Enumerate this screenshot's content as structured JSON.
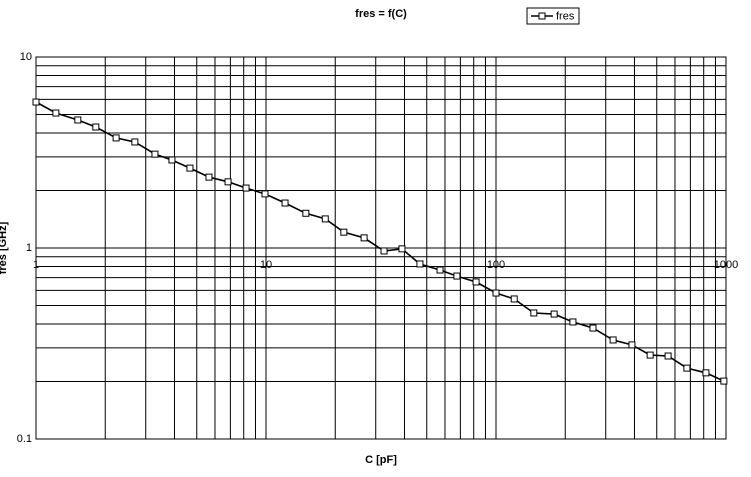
{
  "chart_data": {
    "type": "line",
    "title": "fres = f(C)",
    "x_label": "C [pF]",
    "y_label": "fres [GHz]",
    "x_log": true,
    "y_log": true,
    "grid": true,
    "legend": "top-right",
    "xlim": [
      1,
      1000
    ],
    "ylim": [
      0.1,
      10
    ],
    "xticks": [
      1,
      10,
      100,
      1000
    ],
    "yticks": [
      0.1,
      1,
      10
    ],
    "xgrid_minor": [
      2,
      3,
      4,
      5,
      6,
      7,
      8,
      9,
      20,
      30,
      40,
      50,
      60,
      70,
      80,
      90,
      200,
      300,
      400,
      500,
      600,
      700,
      800,
      900
    ],
    "ygrid_minor": [
      0.2,
      0.3,
      0.4,
      0.5,
      0.6,
      0.7,
      0.8,
      0.9,
      2,
      3,
      4,
      5,
      6,
      7,
      8,
      9
    ],
    "x": [
      1.0,
      1.22,
      1.52,
      1.82,
      2.23,
      2.69,
      3.29,
      3.9,
      4.67,
      5.65,
      6.84,
      8.19,
      9.9,
      12.1,
      14.9,
      18.1,
      21.8,
      26.7,
      32.6,
      39.0,
      46.7,
      57.1,
      67.6,
      81.9,
      100,
      120,
      146,
      179,
      216,
      264,
      323,
      390,
      468,
      560,
      676,
      818,
      979
    ],
    "series": [
      {
        "name": "fres",
        "color": "#000000",
        "values": [
          5.81,
          5.09,
          4.68,
          4.3,
          3.77,
          3.59,
          3.1,
          2.89,
          2.62,
          2.35,
          2.22,
          2.06,
          1.92,
          1.72,
          1.52,
          1.42,
          1.21,
          1.13,
          0.965,
          0.99,
          0.825,
          0.767,
          0.713,
          0.664,
          0.581,
          0.541,
          0.457,
          0.451,
          0.41,
          0.381,
          0.33,
          0.311,
          0.275,
          0.272,
          0.235,
          0.222,
          0.201
        ]
      }
    ]
  }
}
